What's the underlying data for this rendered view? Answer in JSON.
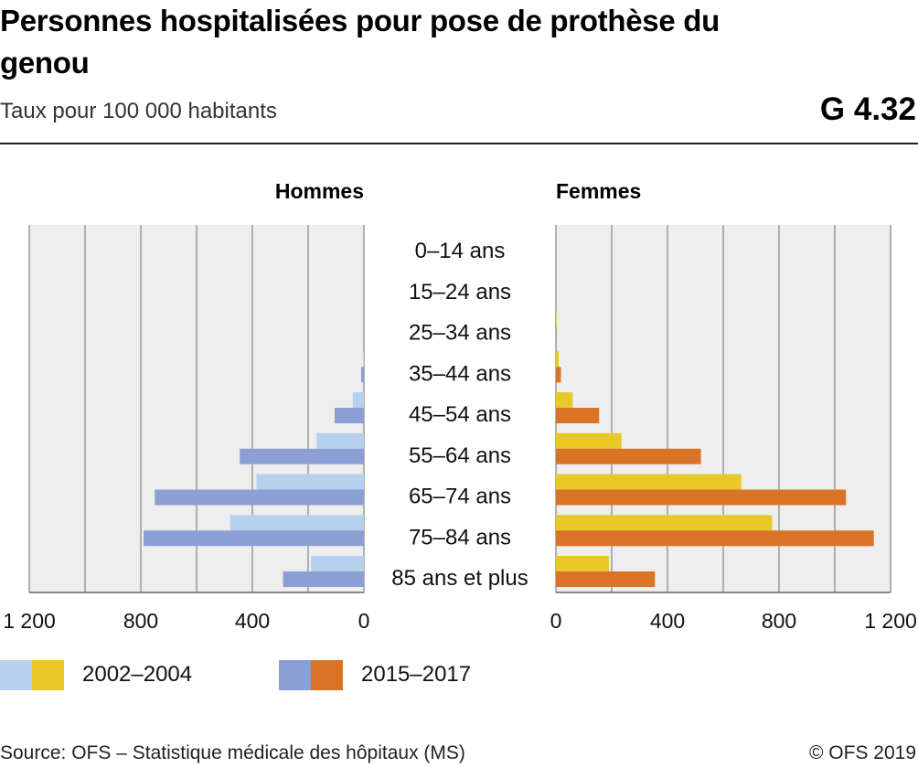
{
  "header": {
    "title": "Personnes hospitalisées pour pose de prothèse du genou",
    "subtitle": "Taux pour 100 000 habitants",
    "figure_number": "G 4.32"
  },
  "legend": [
    {
      "label": "2002–2004",
      "colors": [
        "#b7d0ee",
        "#e9c82a"
      ]
    },
    {
      "label": "2015–2017",
      "colors": [
        "#8b9fd4",
        "#d97326"
      ]
    }
  ],
  "footer": {
    "source": "Source: OFS – Statistique médicale des hôpitaux (MS)",
    "copyright": "© OFS 2019"
  },
  "colors": {
    "hommes_2002_2004": "#b7d0ee",
    "hommes_2015_2017": "#8b9fd4",
    "femmes_2002_2004": "#e9c82a",
    "femmes_2015_2017": "#d97326",
    "plot_bg": "#eeeeee",
    "grid": "#9a9a9a"
  },
  "chart_data": {
    "type": "bar",
    "orientation": "horizontal",
    "layout": "population-pyramid",
    "categories": [
      "0–14 ans",
      "15–24 ans",
      "25–34 ans",
      "35–44 ans",
      "45–54 ans",
      "55–64 ans",
      "65–74 ans",
      "75–84 ans",
      "85 ans et plus"
    ],
    "panels": [
      {
        "name": "Hommes",
        "direction": "left",
        "xlim": [
          0,
          1200
        ],
        "ticks": [
          0,
          400,
          800,
          1200
        ],
        "tick_labels": [
          "0",
          "400",
          "800",
          "1 200"
        ],
        "series": [
          {
            "name": "2002–2004",
            "values": [
              0,
              0,
              0,
              3,
              40,
              170,
              385,
              480,
              190
            ]
          },
          {
            "name": "2015–2017",
            "values": [
              0,
              0,
              0,
              10,
              105,
              445,
              750,
              790,
              290
            ]
          }
        ]
      },
      {
        "name": "Femmes",
        "direction": "right",
        "xlim": [
          0,
          1200
        ],
        "ticks": [
          0,
          400,
          800,
          1200
        ],
        "tick_labels": [
          "0",
          "400",
          "800",
          "1 200"
        ],
        "series": [
          {
            "name": "2002–2004",
            "values": [
              0,
              0,
              2,
              10,
              60,
              235,
              665,
              775,
              190
            ]
          },
          {
            "name": "2015–2017",
            "values": [
              0,
              0,
              1,
              18,
              155,
              520,
              1040,
              1140,
              355
            ]
          }
        ]
      }
    ],
    "grid": true
  }
}
